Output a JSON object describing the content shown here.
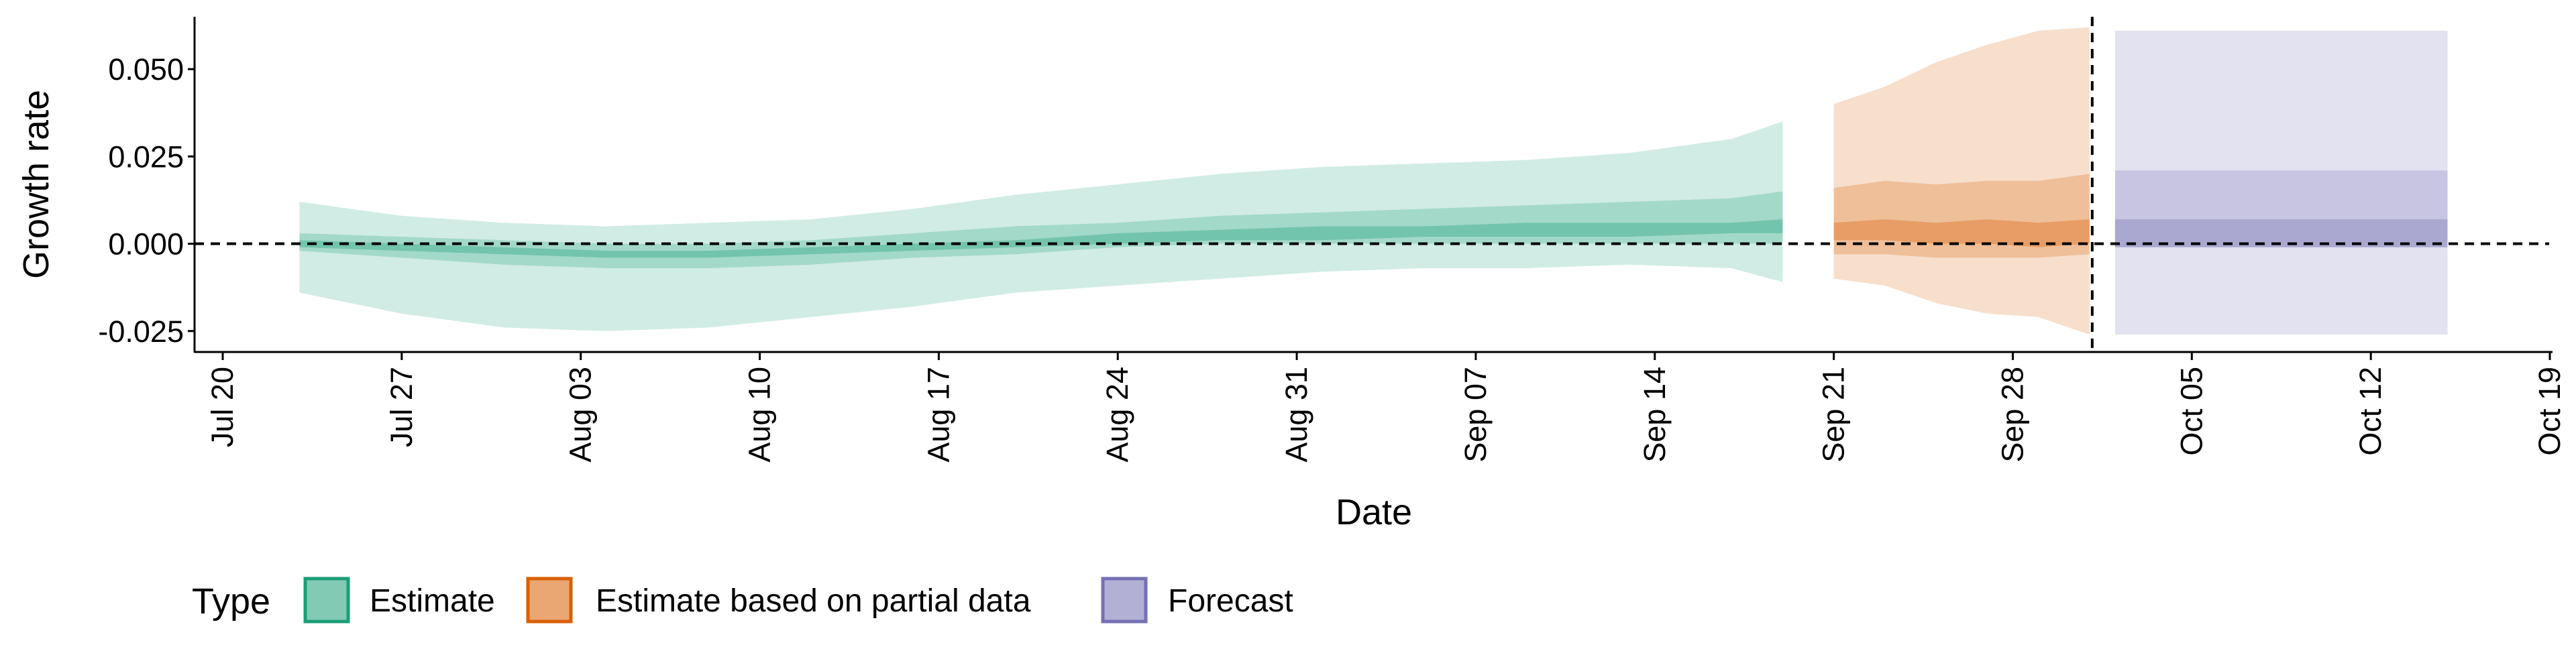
{
  "chart_data": {
    "type": "area",
    "xlabel": "Date",
    "ylabel": "Growth rate",
    "x_ticks": [
      "Jul 20",
      "Jul 27",
      "Aug 03",
      "Aug 10",
      "Aug 17",
      "Aug 24",
      "Aug 31",
      "Sep 07",
      "Sep 14",
      "Sep 21",
      "Sep 28",
      "Oct 05",
      "Oct 12",
      "Oct 19"
    ],
    "x_range": [
      "2020-07-20",
      "2020-10-19"
    ],
    "y_ticks": [
      "-0.025",
      "0.000",
      "0.025",
      "0.050"
    ],
    "y_tick_values": [
      -0.025,
      0.0,
      0.025,
      0.05
    ],
    "ylim": [
      -0.031,
      0.065
    ],
    "reference_line": {
      "y": 0.0,
      "style": "dashed"
    },
    "forecast_start_line": {
      "x": "2020-10-01",
      "style": "dashed"
    },
    "legend": {
      "title": "Type",
      "position": "bottom-left",
      "items": [
        {
          "label": "Estimate",
          "color": "#1b9e77"
        },
        {
          "label": "Estimate based on partial data",
          "color": "#d95f02"
        },
        {
          "label": "Forecast",
          "color": "#7570b3"
        }
      ]
    },
    "series": [
      {
        "type_label": "Estimate",
        "color": "#1b9e77",
        "x": [
          "2020-07-23",
          "2020-07-27",
          "2020-07-31",
          "2020-08-04",
          "2020-08-08",
          "2020-08-12",
          "2020-08-16",
          "2020-08-20",
          "2020-08-24",
          "2020-08-28",
          "2020-09-01",
          "2020-09-05",
          "2020-09-09",
          "2020-09-13",
          "2020-09-17",
          "2020-09-19"
        ],
        "outer_lower": [
          -0.014,
          -0.02,
          -0.024,
          -0.025,
          -0.024,
          -0.021,
          -0.018,
          -0.014,
          -0.012,
          -0.01,
          -0.008,
          -0.007,
          -0.007,
          -0.006,
          -0.007,
          -0.011
        ],
        "outer_upper": [
          0.012,
          0.008,
          0.006,
          0.005,
          0.006,
          0.007,
          0.01,
          0.014,
          0.017,
          0.02,
          0.022,
          0.023,
          0.024,
          0.026,
          0.03,
          0.035
        ],
        "middle_lower": [
          -0.002,
          -0.004,
          -0.006,
          -0.007,
          -0.007,
          -0.006,
          -0.004,
          -0.003,
          -0.001,
          0.0,
          0.0,
          0.0,
          0.0,
          0.0,
          0.0,
          0.0
        ],
        "middle_upper": [
          0.003,
          0.002,
          0.001,
          0.0,
          0.0,
          0.001,
          0.003,
          0.005,
          0.006,
          0.008,
          0.009,
          0.01,
          0.011,
          0.012,
          0.013,
          0.015
        ],
        "inner_lower": [
          -0.001,
          -0.002,
          -0.003,
          -0.004,
          -0.004,
          -0.003,
          -0.002,
          -0.001,
          0.0,
          0.001,
          0.001,
          0.002,
          0.002,
          0.002,
          0.003,
          0.003
        ],
        "inner_upper": [
          0.001,
          0.0,
          -0.001,
          -0.002,
          -0.002,
          -0.001,
          0.0,
          0.001,
          0.003,
          0.004,
          0.005,
          0.005,
          0.006,
          0.006,
          0.006,
          0.007
        ]
      },
      {
        "type_label": "Estimate based on partial data",
        "color": "#d95f02",
        "x": [
          "2020-09-21",
          "2020-09-23",
          "2020-09-25",
          "2020-09-27",
          "2020-09-29",
          "2020-10-01"
        ],
        "outer_lower": [
          -0.01,
          -0.012,
          -0.017,
          -0.02,
          -0.021,
          -0.026
        ],
        "outer_upper": [
          0.04,
          0.045,
          0.052,
          0.057,
          0.061,
          0.062
        ],
        "middle_lower": [
          -0.003,
          -0.003,
          -0.004,
          -0.004,
          -0.004,
          -0.003
        ],
        "middle_upper": [
          0.016,
          0.018,
          0.017,
          0.018,
          0.018,
          0.02
        ],
        "inner_lower": [
          0.001,
          0.001,
          0.0,
          0.0,
          -0.001,
          0.0
        ],
        "inner_upper": [
          0.006,
          0.007,
          0.006,
          0.007,
          0.006,
          0.007
        ]
      },
      {
        "type_label": "Forecast",
        "color": "#7570b3",
        "x": [
          "2020-10-02",
          "2020-10-15"
        ],
        "outer_lower": [
          -0.026,
          -0.026
        ],
        "outer_upper": [
          0.061,
          0.061
        ],
        "middle_lower": [
          -0.001,
          -0.001
        ],
        "middle_upper": [
          0.021,
          0.021
        ],
        "inner_lower": [
          -0.001,
          -0.001
        ],
        "inner_upper": [
          0.007,
          0.007
        ]
      }
    ]
  }
}
